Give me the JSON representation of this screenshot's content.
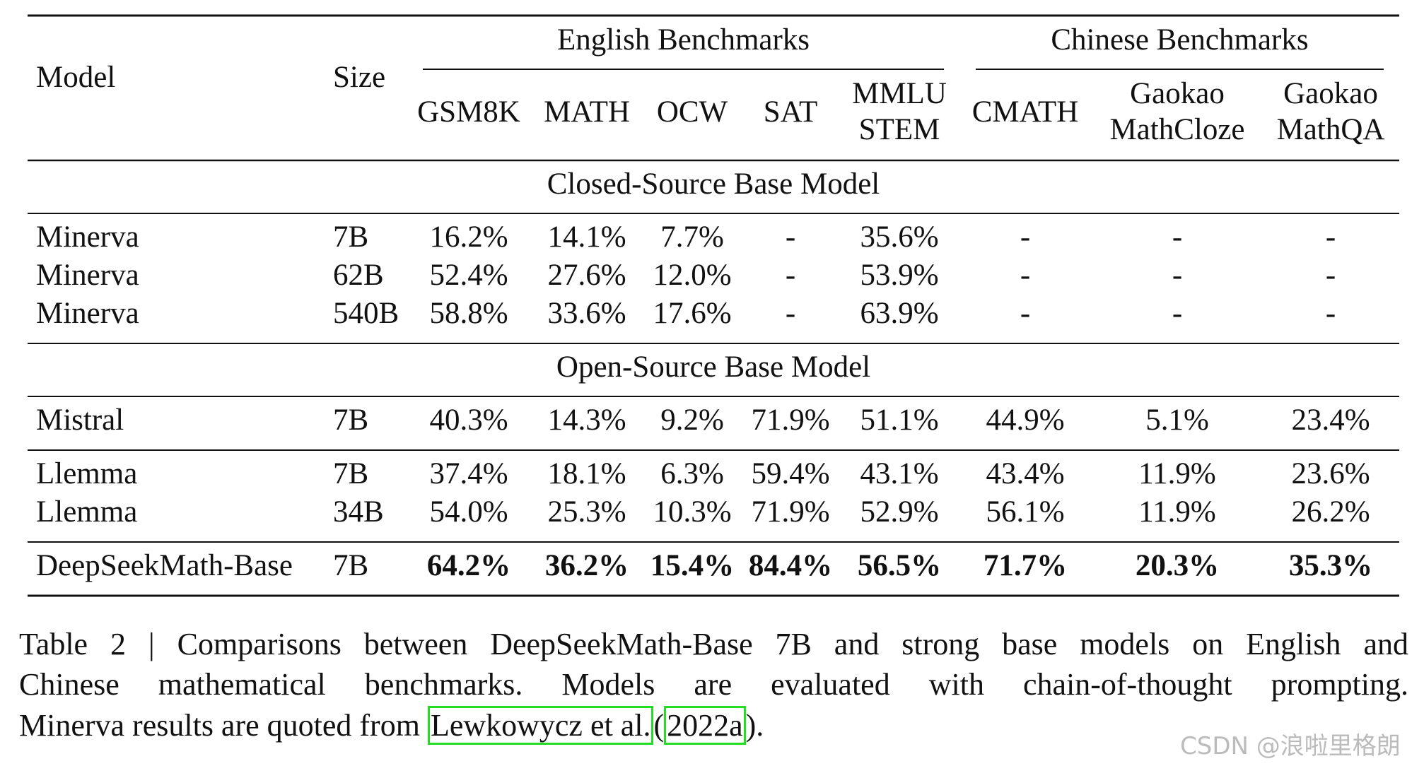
{
  "table": {
    "groups": [
      "English Benchmarks",
      "Chinese Benchmarks"
    ],
    "columns": [
      [
        "Model"
      ],
      [
        "Size"
      ],
      [
        "GSM8K"
      ],
      [
        "MATH"
      ],
      [
        "OCW"
      ],
      [
        "SAT"
      ],
      [
        "MMLU",
        "STEM"
      ],
      [
        "CMATH"
      ],
      [
        "Gaokao",
        "MathCloze"
      ],
      [
        "Gaokao",
        "MathQA"
      ]
    ],
    "blocks": [
      {
        "title": "Closed-Source Base Model",
        "rows": [
          [
            "Minerva",
            "7B",
            "16.2%",
            "14.1%",
            "7.7%",
            "-",
            "35.6%",
            "-",
            "-",
            "-"
          ],
          [
            "Minerva",
            "62B",
            "52.4%",
            "27.6%",
            "12.0%",
            "-",
            "53.9%",
            "-",
            "-",
            "-"
          ],
          [
            "Minerva",
            "540B",
            "58.8%",
            "33.6%",
            "17.6%",
            "-",
            "63.9%",
            "-",
            "-",
            "-"
          ]
        ]
      },
      {
        "title": "Open-Source Base Model",
        "rows": [
          [
            "Mistral",
            "7B",
            "40.3%",
            "14.3%",
            "9.2%",
            "71.9%",
            "51.1%",
            "44.9%",
            "5.1%",
            "23.4%"
          ]
        ]
      },
      {
        "rows": [
          [
            "Llemma",
            "7B",
            "37.4%",
            "18.1%",
            "6.3%",
            "59.4%",
            "43.1%",
            "43.4%",
            "11.9%",
            "23.6%"
          ],
          [
            "Llemma",
            "34B",
            "54.0%",
            "25.3%",
            "10.3%",
            "71.9%",
            "52.9%",
            "56.1%",
            "11.9%",
            "26.2%"
          ]
        ]
      },
      {
        "bold": true,
        "rows": [
          [
            "DeepSeekMath-Base",
            "7B",
            "64.2%",
            "36.2%",
            "15.4%",
            "84.4%",
            "56.5%",
            "71.7%",
            "20.3%",
            "35.3%"
          ]
        ]
      }
    ]
  },
  "caption": {
    "lines": [
      "Table 2 | Comparisons between DeepSeekMath-Base 7B and strong base models on English and",
      "Chinese mathematical benchmarks. Models are evaluated with chain-of-thought prompting."
    ],
    "last": {
      "text": "Minerva results are quoted from ",
      "ref_author": "Lewkowycz et al.",
      "open": "(",
      "ref_year": "2022a",
      "close": ")."
    }
  },
  "watermark": "CSDN @浪啦里格朗"
}
